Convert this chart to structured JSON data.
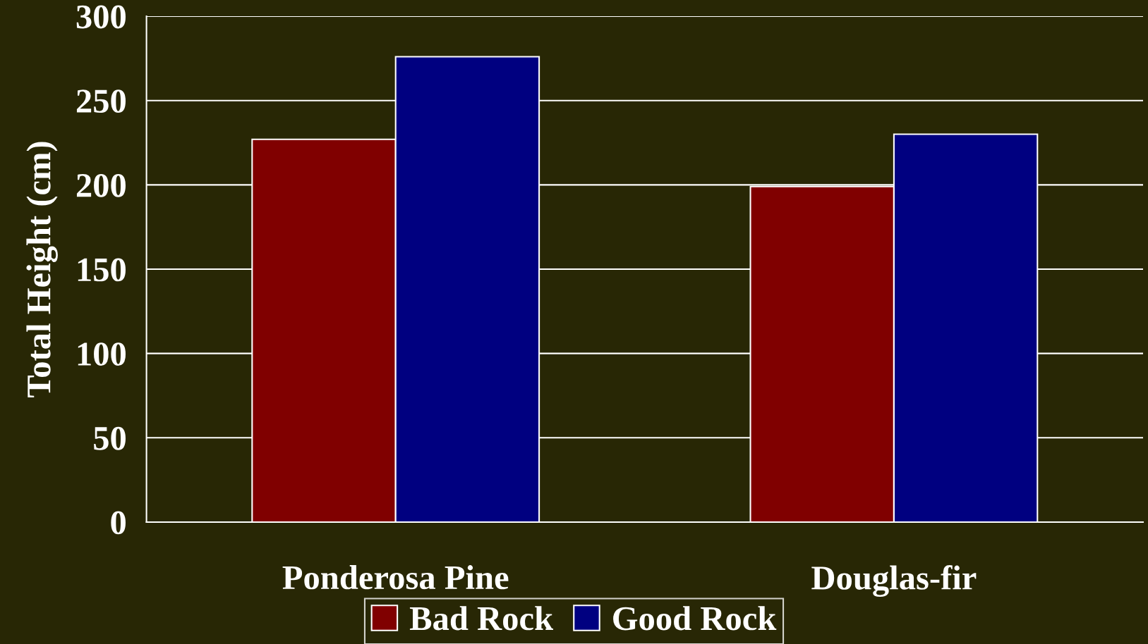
{
  "chart_data": {
    "type": "bar",
    "ylabel": "Total Height (cm)",
    "categories": [
      "Ponderosa Pine",
      "Douglas-fir"
    ],
    "series": [
      {
        "name": "Bad Rock",
        "color": "#800000",
        "values": [
          227,
          199
        ]
      },
      {
        "name": "Good Rock",
        "color": "#000080",
        "values": [
          276,
          230
        ]
      }
    ],
    "ylim": [
      0,
      300
    ],
    "yticks": [
      0,
      50,
      100,
      150,
      200,
      250,
      300
    ],
    "grid": "y",
    "legend": "bottom"
  }
}
